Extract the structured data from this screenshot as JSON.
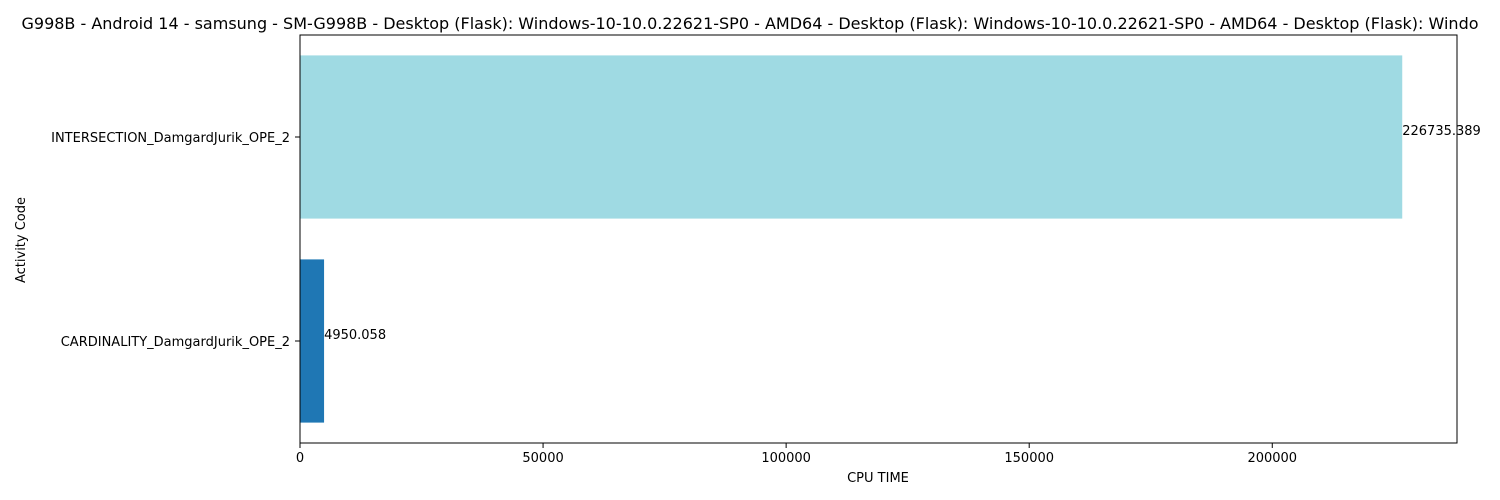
{
  "chart_data": {
    "type": "bar",
    "orientation": "horizontal",
    "title": "G998B - Android 14 - samsung - SM-G998B - Desktop (Flask): Windows-10-10.0.22621-SP0 - AMD64 - Desktop (Flask): Windows-10-10.0.22621-SP0 - AMD64 - Desktop (Flask): Windo",
    "xlabel": "CPU TIME",
    "ylabel": "Activity Code",
    "categories": [
      "INTERSECTION_DamgardJurik_OPE_2",
      "CARDINALITY_DamgardJurik_OPE_2"
    ],
    "values": [
      226735.389,
      4950.058
    ],
    "value_labels": [
      "226735.389",
      "4950.058"
    ],
    "colors": [
      "#9fdae3",
      "#1f77b4"
    ],
    "xlim": [
      0,
      238000
    ],
    "xticks": [
      0,
      50000,
      100000,
      150000,
      200000
    ],
    "xtick_labels": [
      "0",
      "50000",
      "100000",
      "150000",
      "200000"
    ],
    "grid": false,
    "legend": "none"
  }
}
